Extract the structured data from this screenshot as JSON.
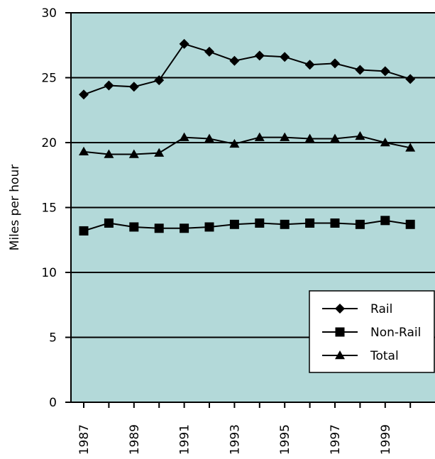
{
  "colors": {
    "plot_background": "#b3d9d9",
    "line": "#000000",
    "gridline": "#000000",
    "legend_background": "#ffffff"
  },
  "chart_data": {
    "type": "line",
    "title": "",
    "xlabel": "",
    "ylabel": "Miles per hour",
    "ylim": [
      0,
      30
    ],
    "y_ticks": [
      0,
      5,
      10,
      15,
      20,
      25,
      30
    ],
    "x": [
      1987,
      1988,
      1989,
      1990,
      1991,
      1992,
      1993,
      1994,
      1995,
      1996,
      1997,
      1998,
      1999,
      2000
    ],
    "x_tick_labels": [
      "1987",
      "1989",
      "1991",
      "1993",
      "1995",
      "1997",
      "1999"
    ],
    "grid": "horizontal",
    "legend_position": "bottom-right",
    "series": [
      {
        "name": "Rail",
        "marker": "diamond",
        "values": [
          23.7,
          24.4,
          24.3,
          24.8,
          27.6,
          27.0,
          26.3,
          26.7,
          26.6,
          26.0,
          26.1,
          25.6,
          25.5,
          24.9
        ]
      },
      {
        "name": "Non-Rail",
        "marker": "square",
        "values": [
          13.2,
          13.8,
          13.5,
          13.4,
          13.4,
          13.5,
          13.7,
          13.8,
          13.7,
          13.8,
          13.8,
          13.7,
          14.0,
          13.7
        ]
      },
      {
        "name": "Total",
        "marker": "triangle",
        "values": [
          19.3,
          19.1,
          19.1,
          19.2,
          20.4,
          20.3,
          19.9,
          20.4,
          20.4,
          20.3,
          20.3,
          20.5,
          20.0,
          19.6
        ]
      }
    ]
  }
}
